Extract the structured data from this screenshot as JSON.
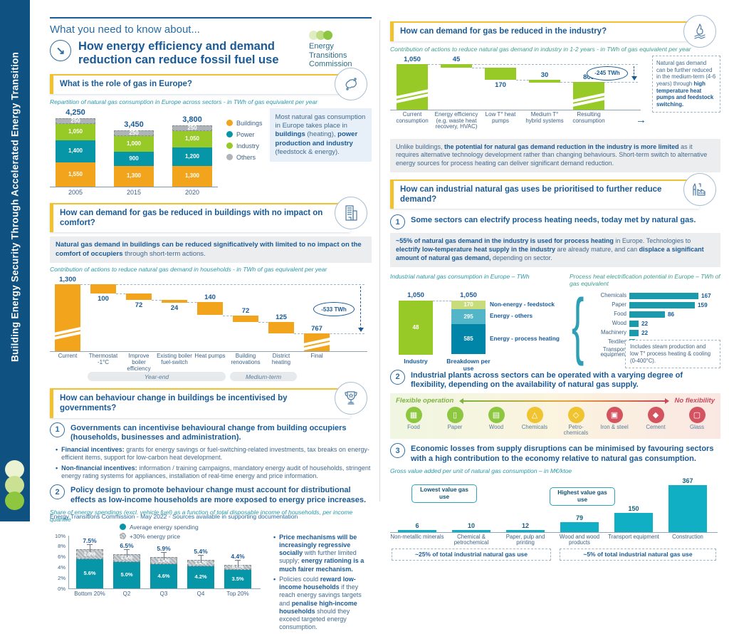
{
  "sidebar": {
    "vertical_title": "Building Energy Security Through Accelerated Energy Transition"
  },
  "footer": "Energy Transitions Commission - May 2022 - Sources available in supporting documentation",
  "icons": {
    "arrow_right": "→",
    "title_arrow": "↘",
    "bullet": "•"
  },
  "colors": {
    "navy": "#1A5A96",
    "orange": "#F2A51C",
    "teal": "#0795A8",
    "green": "#97CA26",
    "gray": "#AEB4B8",
    "yellow": "#F2C12E",
    "cyan": "#11AFC4",
    "red": "#C9485B"
  },
  "header": {
    "eyebrow": "What you need to know about...",
    "title": "How energy efficiency and demand reduction can reduce fossil fuel use",
    "logo_lines": [
      "Energy",
      "Transitions",
      "Commission"
    ]
  },
  "left": {
    "s1": {
      "heading": "What is the role of gas in Europe?",
      "icon": "europe-map-icon",
      "subtitle": "Repartition of natural gas consumption in Europe across sectors - in TWh of gas equivalent per year",
      "note_html": "Most natural gas consumption in Europe takes place in <b>buildings</b> (heating), <b>power production and industry</b> (feedstock &amp; energy)."
    },
    "s2": {
      "heading": "How can demand for gas be reduced in buildings with no impact on comfort?",
      "icon": "building-icon",
      "callout_html": "<b>Natural gas demand in buildings can be reduced significatively with limited to no impact on the comfort of occupiers</b> through short-term actions.",
      "subtitle": "Contribution of actions to reduce natural gas demand in households - in TWh of gas equivalent per year"
    },
    "s3": {
      "heading": "How can behaviour change in buildings be incentivised by governments?",
      "icon": "trophy-icon",
      "point1": "Governments can incentivise behavioural change from building occupiers (households, businesses and administration).",
      "bullets_html": [
        "<b>Financial incentives:</b> grants for energy savings or fuel-switching-related investments, tax breaks on energy-efficient items, support for low-carbon heat development.",
        "<b>Non-financial incentives:</b> information / training campaigns, mandatory energy audit of households, stringent energy rating systems for appliances, installation of real-time energy and price information."
      ],
      "point2": "Policy design to promote behaviour change must account for distributional effects as low-income households are more exposed to energy price increases.",
      "subtitle": "Share of energy spendings (excl. vehicle fuel) as a function of total disposable income of households, per income quantile",
      "side_bullets_html": [
        "<b>Price mechanisms will be increasingly regressive socially</b> with further limited supply; <b>energy rationing is a much fairer mechanism.</b>",
        "Policies could <b>reward low-income households</b> if they reach energy savings targets and <b>penalise high-income households</b> should they exceed targeted energy consumption."
      ]
    }
  },
  "right": {
    "r1": {
      "heading": "How can demand for gas be reduced in the industry?",
      "icon": "gas-flame-icon",
      "subtitle": "Contribution of actions to reduce natural gas demand in industry in 1-2 years - in TWh of gas equivalent per year",
      "notebox_html": "Natural gas demand can be further reduced in the medium-term (4-6 years) through <b>high temperature heat pumps and feedstock switching.</b>",
      "para_html": "Unlike buildings, <b>the potential for natural gas demand reduction in the industry is more limited</b> as it requires alternative technology development rather than changing behaviours. Short-term switch to alternative energy sources for process heating can deliver significant demand reduction."
    },
    "r2": {
      "heading": "How can industrial natural gas uses be prioritised to further reduce demand?",
      "icon": "factory-icon",
      "point1": "Some sectors can electrify process heating needs, today met by natural gas.",
      "box_html": "<b>~55% of natural gas demand in the industry is used for process heating</b> in Europe. Technologies to <b>electrify low-temperature heat supply in the industry</b> are already mature, and can <b>displace a significant amount of natural gas demand,</b> depending on sector.",
      "point2": "Industrial plants across sectors can be operated with a varying degree of flexibility, depending on the availability of natural gas supply.",
      "point3": "Economic losses from supply disruptions can be minimised by favouring sectors with a high contribution to the economy relative to natural gas consumption."
    }
  },
  "chart_data": [
    {
      "id": "gas-by-sector",
      "type": "bar",
      "stacked": true,
      "title": "Repartition of natural gas consumption in Europe across sectors - in TWh of gas equivalent per year",
      "categories": [
        "2005",
        "2015",
        "2020"
      ],
      "totals": [
        4250,
        3450,
        3800
      ],
      "series": [
        {
          "name": "Buildings",
          "color": "#F2A51C",
          "values": [
            1550,
            1300,
            1300
          ]
        },
        {
          "name": "Power",
          "color": "#0795A8",
          "values": [
            1400,
            900,
            1200
          ]
        },
        {
          "name": "Industry",
          "color": "#97CA26",
          "values": [
            1050,
            1000,
            1050
          ]
        },
        {
          "name": "Others",
          "color": "#AEB4B8",
          "values": [
            250,
            250,
            250
          ]
        }
      ]
    },
    {
      "id": "buildings-reduction",
      "type": "waterfall",
      "color": "#F2A51C",
      "title": "Contribution of actions to reduce natural gas demand in households - in TWh of gas equivalent per year",
      "start": {
        "label": "Current",
        "value": 1300
      },
      "steps": [
        {
          "label": "Thermostat -1°C",
          "value": 100,
          "label_pos": "below"
        },
        {
          "label": "Improve boiler efficiency",
          "value": 72,
          "label_pos": "below"
        },
        {
          "label": "Existing boiler fuel-switch",
          "value": 24,
          "label_pos": "below"
        },
        {
          "label": "Heat pumps",
          "value": 140,
          "label_pos": "above"
        },
        {
          "label": "Building renovations",
          "value": 72,
          "label_pos": "above"
        },
        {
          "label": "District heating",
          "value": 125,
          "label_pos": "above"
        }
      ],
      "end": {
        "label": "Final",
        "value": 767
      },
      "delta": "-533 TWh",
      "groups": [
        {
          "label": "Year-end",
          "from": 1,
          "to": 4
        },
        {
          "label": "Medium-term",
          "from": 5,
          "to": 6
        }
      ]
    },
    {
      "id": "energy-spending-share",
      "type": "stacked-bar-pct",
      "title": "Share of energy spendings (excl. vehicle fuel) as a function of total disposable income of households, per income quantile",
      "categories": [
        "Bottom 20%",
        "Q2",
        "Q3",
        "Q4",
        "Top 20%"
      ],
      "base": [
        5.6,
        5.0,
        4.6,
        4.2,
        3.5
      ],
      "increase": [
        1.9,
        1.5,
        1.3,
        1.2,
        0.9
      ],
      "totals": [
        7.5,
        6.5,
        5.9,
        5.4,
        4.4
      ],
      "base_color": "#0795A8",
      "ylim": [
        0,
        10
      ],
      "legend": [
        "Average energy spending",
        "+30% energy price"
      ]
    },
    {
      "id": "industry-reduction",
      "type": "waterfall",
      "color": "#97CA26",
      "title": "Contribution of actions to reduce natural gas demand in industry in 1-2 years - in TWh of gas equivalent per year",
      "start": {
        "label": "Current consumption",
        "value": 1050
      },
      "steps": [
        {
          "label": "Energy efficiency (e.g. waste heat recovery, HVAC)",
          "value": 45,
          "label_pos": "above"
        },
        {
          "label": "Low T° heat pumps",
          "value": 170,
          "label_pos": "below"
        },
        {
          "label": "Medium T° hybrid systems",
          "value": 30,
          "label_pos": "above"
        }
      ],
      "end": {
        "label": "Resulting consumption",
        "value": 805
      },
      "delta": "-245 TWh"
    },
    {
      "id": "industry-gas-breakdown",
      "type": "breakdown",
      "title": "Industrial natural gas consumption in Europe – TWh",
      "left_bar": {
        "label": "Industry",
        "value": 1050,
        "inner_label": "48",
        "color": "#97CA26"
      },
      "right_bar": {
        "label": "Breakdown per use",
        "value": 1050,
        "segments": [
          {
            "label": "Non-energy - feedstock",
            "value": 170,
            "color": "#C9DC7C"
          },
          {
            "label": "Energy - others",
            "value": 295,
            "color": "#53B5C8"
          },
          {
            "label": "Energy - process heating",
            "value": 585,
            "color": "#0084A8"
          }
        ]
      }
    },
    {
      "id": "process-heat-potential",
      "type": "hbar",
      "color": "#1B9AAE",
      "title": "Process heat electrification potential in Europe – TWh of gas equivalent",
      "items": [
        {
          "label": "Chemicals",
          "value": 167
        },
        {
          "label": "Paper",
          "value": 159
        },
        {
          "label": "Food",
          "value": 86
        },
        {
          "label": "Wood",
          "value": 22
        },
        {
          "label": "Machinery",
          "value": 22
        },
        {
          "label": "Textiles",
          "value": 13
        },
        {
          "label": "Transport equipment",
          "value": 13
        }
      ],
      "note": "Includes steam production and low T° process heating & cooling (0-400°C)."
    },
    {
      "id": "flexibility-spectrum",
      "type": "spectrum",
      "left_label": "Flexible operation",
      "right_label": "No flexibility",
      "groups": [
        {
          "color": "#8DC63F",
          "items": [
            {
              "label": "Food",
              "icon": "food-icon",
              "glyph": "▦"
            },
            {
              "label": "Paper",
              "icon": "paper-icon",
              "glyph": "▯"
            },
            {
              "label": "Wood",
              "icon": "wood-icon",
              "glyph": "▤"
            }
          ]
        },
        {
          "color": "#F0C330",
          "items": [
            {
              "label": "Chemicals",
              "icon": "chemicals-icon",
              "glyph": "△"
            },
            {
              "label": "Petro-chemicals",
              "icon": "petro-chemicals-icon",
              "glyph": "◇"
            }
          ]
        },
        {
          "color": "#D35460",
          "items": [
            {
              "label": "Iron & steel",
              "icon": "iron-steel-icon",
              "glyph": "▣"
            },
            {
              "label": "Cement",
              "icon": "cement-icon",
              "glyph": "◆"
            },
            {
              "label": "Glass",
              "icon": "glass-icon",
              "glyph": "▢"
            }
          ]
        }
      ]
    },
    {
      "id": "gross-value-added",
      "type": "bar",
      "color": "#11AFC4",
      "title": "Gross value added per unit of natural gas consumption – in M€/ktoe",
      "categories": [
        "Non-metallic minerals",
        "Chemical & petrochemical",
        "Paper, pulp and printing",
        "Wood and wood products",
        "Transport equipment",
        "Construction"
      ],
      "values": [
        6,
        10,
        12,
        79,
        150,
        367
      ],
      "annotations": {
        "low": "Lowest value gas use",
        "high": "Highest value gas use",
        "left_share": "~25% of total industrial natural gas use",
        "right_share": "~5% of total industrial natural gas use"
      }
    }
  ]
}
